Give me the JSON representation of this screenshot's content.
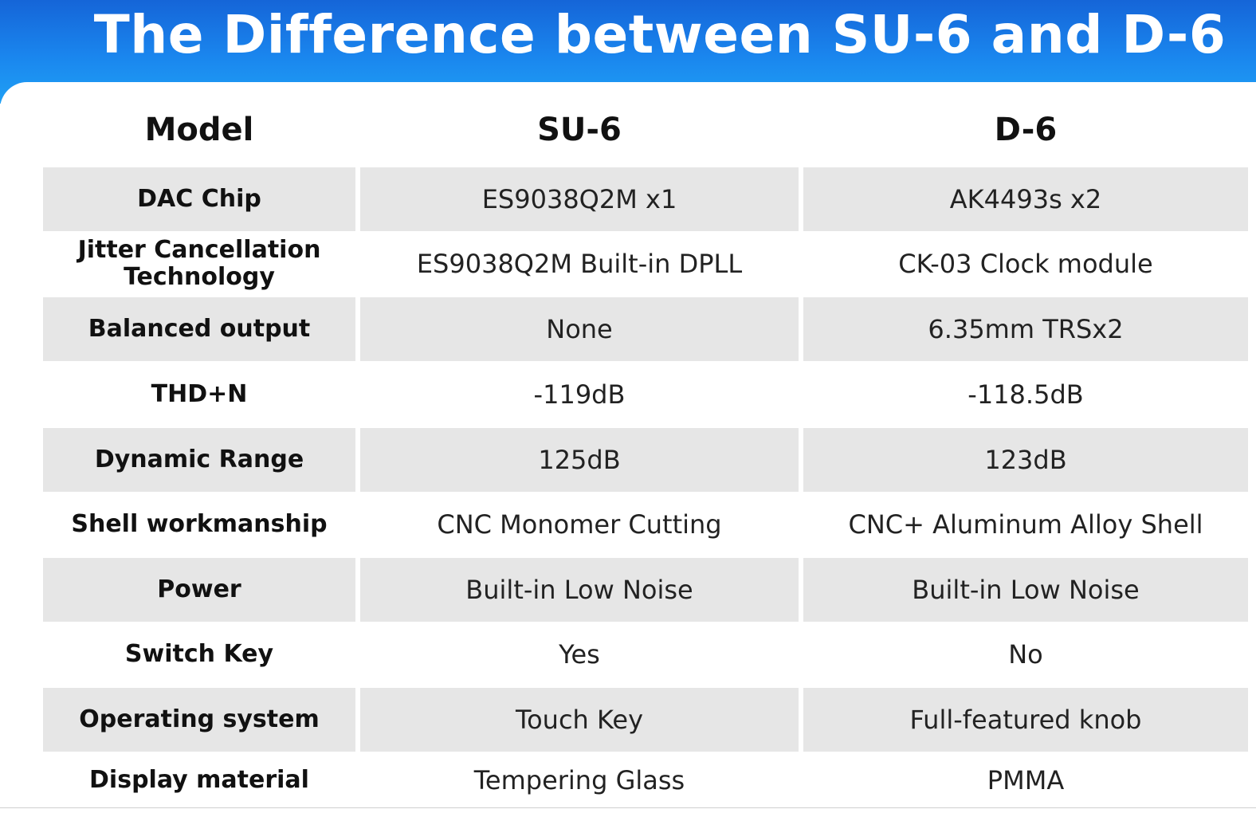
{
  "header": {
    "title": "The Difference between SU-6 and D-6"
  },
  "table": {
    "columns": [
      "Model",
      "SU-6",
      "D-6"
    ],
    "rows": [
      {
        "label": "DAC Chip",
        "su6": "ES9038Q2M x1",
        "d6": "AK4493s x2"
      },
      {
        "label": "Jitter Cancellation Technology",
        "su6": "ES9038Q2M Built-in DPLL",
        "d6": "CK-03 Clock module"
      },
      {
        "label": "Balanced output",
        "su6": "None",
        "d6": "6.35mm TRSx2"
      },
      {
        "label": "THD+N",
        "su6": "-119dB",
        "d6": "-118.5dB"
      },
      {
        "label": "Dynamic Range",
        "su6": "125dB",
        "d6": "123dB"
      },
      {
        "label": "Shell workmanship",
        "su6": "CNC Monomer Cutting",
        "d6": "CNC+ Aluminum Alloy Shell"
      },
      {
        "label": "Power",
        "su6": "Built-in Low Noise",
        "d6": "Built-in Low Noise"
      },
      {
        "label": "Switch Key",
        "su6": "Yes",
        "d6": "No"
      },
      {
        "label": "Operating system",
        "su6": "Touch Key",
        "d6": "Full-featured knob"
      },
      {
        "label": "Display material",
        "su6": "Tempering Glass",
        "d6": "PMMA"
      }
    ]
  },
  "colors": {
    "banner_top": "#1565d8",
    "banner_bottom": "#1fa0f5",
    "row_shade": "#e6e6e6",
    "text": "#111111"
  }
}
